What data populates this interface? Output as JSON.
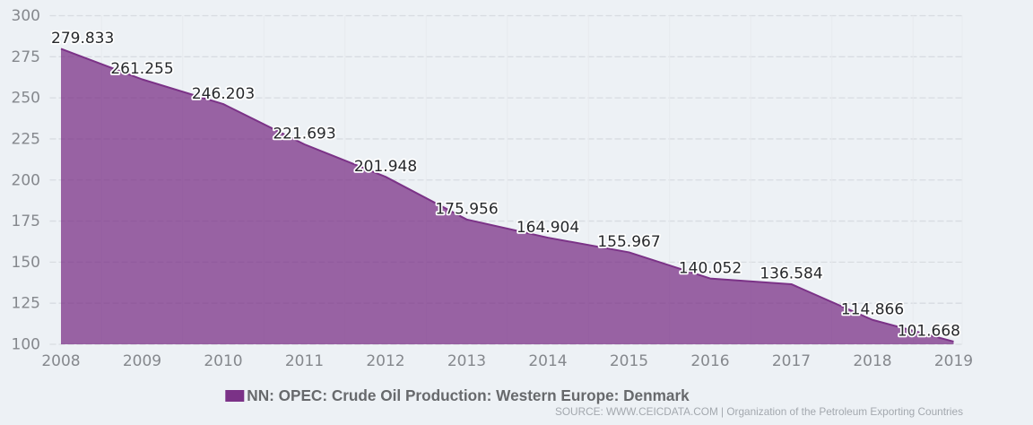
{
  "chart_data": {
    "type": "area",
    "title": "",
    "categories": [
      "2008",
      "2009",
      "2010",
      "2011",
      "2012",
      "2013",
      "2014",
      "2015",
      "2016",
      "2017",
      "2018",
      "2019"
    ],
    "series": [
      {
        "name": "NN: OPEC: Crude Oil Production: Western Europe: Denmark",
        "values": [
          279.833,
          261.255,
          246.203,
          221.693,
          201.948,
          175.956,
          164.904,
          155.967,
          140.052,
          136.584,
          114.866,
          101.668
        ]
      }
    ],
    "data_labels": [
      "279.833",
      "261.255",
      "246.203",
      "221.693",
      "201.948",
      "175.956",
      "164.904",
      "155.967",
      "140.052",
      "136.584",
      "114.866",
      "101.668"
    ],
    "xlabel": "",
    "ylabel": "",
    "ylim": [
      100,
      300
    ],
    "yticks": [
      100,
      125,
      150,
      175,
      200,
      225,
      250,
      275,
      300
    ],
    "grid": "horizontal-dashed",
    "legend_position": "bottom-center",
    "colors": {
      "background": "#edf1f5",
      "series_line": "#7b3287",
      "series_fill_opacity": 0.75,
      "h_gridline": "#d8dce1",
      "v_gridline": "#e7eaee",
      "axis_label": "#85888d",
      "data_label": "#26282b",
      "legend_text": "#67696c",
      "source_text": "#a3a8ae"
    }
  },
  "legend": {
    "label": "NN: OPEC: Crude Oil Production: Western Europe: Denmark"
  },
  "footer": {
    "source_text": "SOURCE: WWW.CEICDATA.COM | Organization of the Petroleum Exporting Countries"
  }
}
